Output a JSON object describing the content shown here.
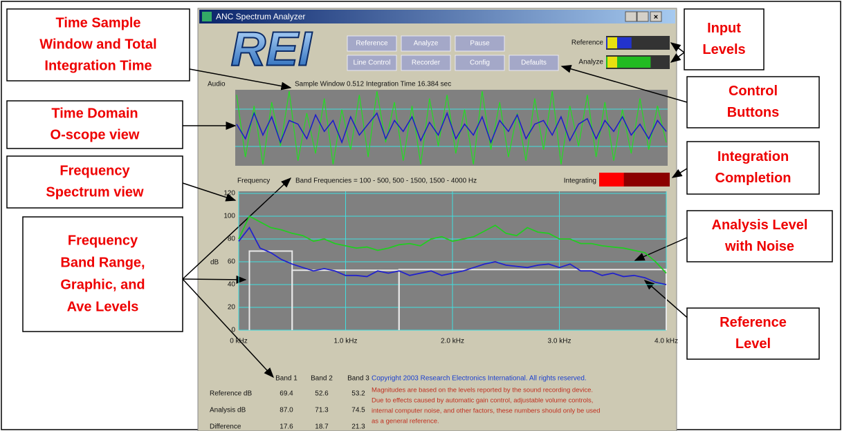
{
  "window": {
    "title": "ANC Spectrum Analyzer",
    "logo": "REI",
    "buttons": [
      "Reference",
      "Analyze",
      "Pause",
      "Line Control",
      "Recorder",
      "Config",
      "Defaults"
    ],
    "meters": [
      {
        "label": "Reference",
        "level": 40
      },
      {
        "label": "Analyze",
        "level": 70
      }
    ],
    "audio_label": "Audio",
    "sample_info": "Sample Window 0.512   Integration Time 16.384 sec",
    "frequency_label": "Frequency",
    "band_info": "Band Frequencies = 100 - 500, 500 - 1500, 1500 - 4000 Hz",
    "integrating_label": "Integrating",
    "integrating_progress": 35
  },
  "scope": {
    "series": [
      {
        "color": "#22dd22",
        "values": [
          0.9,
          -0.8,
          0.6,
          -1,
          0.7,
          -0.5,
          1,
          -0.9,
          0.4,
          -0.7,
          0.8,
          -1,
          0.5,
          -0.6,
          0.9,
          -0.8,
          1,
          -0.4,
          0.7,
          -0.9,
          0.6,
          -1,
          0.8,
          -0.5,
          0.9,
          -0.7,
          0.5,
          -1,
          1,
          -0.6,
          0.7,
          -0.8,
          0.4,
          -0.9,
          0.8,
          -0.6,
          1,
          -1,
          0.6,
          -0.5,
          0.9,
          -0.8,
          0.7,
          -0.9,
          0.5,
          -0.7,
          0.8,
          -0.6,
          0.6,
          -0.4
        ]
      },
      {
        "color": "#1a1acc",
        "values": [
          0.1,
          -0.3,
          0.4,
          -0.2,
          0.3,
          -0.4,
          0.2,
          0.1,
          -0.3,
          0.35,
          -0.1,
          0.2,
          -0.4,
          0.3,
          -0.2,
          0.1,
          0.4,
          -0.3,
          0.2,
          -0.1,
          0.3,
          -0.35,
          0.15,
          -0.2,
          0.4,
          -0.3,
          0.1,
          -0.2,
          0.3,
          -0.4,
          0.2,
          -0.1,
          0.35,
          -0.3,
          0.1,
          0.2,
          -0.2,
          0.3,
          -0.35,
          0.1,
          0.25,
          -0.3,
          0.2,
          -0.1,
          0.3,
          -0.2,
          0.1,
          -0.3,
          0.2,
          -0.1
        ]
      }
    ]
  },
  "chart_data": {
    "type": "line",
    "ylabel": "dB",
    "x": [
      0,
      0.1,
      0.2,
      0.3,
      0.4,
      0.5,
      0.6,
      0.7,
      0.8,
      0.9,
      1.0,
      1.1,
      1.2,
      1.3,
      1.4,
      1.5,
      1.6,
      1.7,
      1.8,
      1.9,
      2.0,
      2.1,
      2.2,
      2.3,
      2.4,
      2.5,
      2.6,
      2.7,
      2.8,
      2.9,
      3.0,
      3.1,
      3.2,
      3.3,
      3.4,
      3.5,
      3.6,
      3.7,
      3.8,
      3.9,
      4.0
    ],
    "series": [
      {
        "color": "#22cc22",
        "values": [
          80,
          100,
          95,
          90,
          88,
          85,
          83,
          78,
          80,
          76,
          74,
          72,
          73,
          70,
          72,
          75,
          76,
          74,
          80,
          82,
          78,
          80,
          82,
          87,
          92,
          85,
          83,
          90,
          86,
          85,
          80,
          80,
          76,
          76,
          74,
          73,
          72,
          70,
          68,
          60,
          50
        ]
      },
      {
        "color": "#2222cc",
        "values": [
          78,
          90,
          72,
          68,
          62,
          58,
          55,
          52,
          54,
          52,
          48,
          48,
          47,
          52,
          50,
          52,
          48,
          50,
          52,
          48,
          50,
          52,
          55,
          58,
          60,
          57,
          56,
          55,
          57,
          58,
          55,
          58,
          52,
          52,
          48,
          50,
          47,
          48,
          46,
          42,
          40
        ]
      }
    ],
    "band_ranges": [
      [
        0.1,
        0.5
      ],
      [
        0.5,
        1.5
      ],
      [
        1.5,
        4.0
      ]
    ],
    "xlim": [
      0,
      4.0
    ],
    "xticks": [
      {
        "value": 0,
        "label": "0 kHz"
      },
      {
        "value": 1,
        "label": "1.0 kHz"
      },
      {
        "value": 2,
        "label": "2.0 kHz"
      },
      {
        "value": 3,
        "label": "3.0 kHz"
      },
      {
        "value": 4,
        "label": "4.0 kHz"
      }
    ],
    "ylim": [
      0,
      120
    ],
    "yticks": [
      0,
      20,
      40,
      60,
      80,
      100,
      120
    ],
    "grid": true
  },
  "table": {
    "header": [
      "Band 1",
      "Band 2",
      "Band 3"
    ],
    "rows": [
      {
        "label": "Reference dB",
        "values": [
          "69.4",
          "52.6",
          "53.2"
        ]
      },
      {
        "label": "Analysis dB",
        "values": [
          "87.0",
          "71.3",
          "74.5"
        ]
      },
      {
        "label": "Difference",
        "values": [
          "17.6",
          "18.7",
          "21.3"
        ]
      }
    ]
  },
  "copyright": "Copyright 2003  Research Electronics International.  All rights reserved.",
  "disclaimer": [
    "Magnitudes are based on the levels reported by the sound recording device.",
    "Due to effects caused by automatic gain control, adjustable volume controls,",
    "internal computer noise, and other factors, these numbers should only be used",
    "as a general reference."
  ],
  "callouts": [
    {
      "lines": [
        "Time Sample",
        "Window and Total",
        "Integration Time"
      ]
    },
    {
      "lines": [
        "Time Domain",
        "O-scope view"
      ]
    },
    {
      "lines": [
        "Frequency",
        "Spectrum view"
      ]
    },
    {
      "lines": [
        "Frequency",
        "Band Range,",
        "Graphic, and",
        "Ave Levels"
      ]
    },
    {
      "lines": [
        "Input",
        "Levels"
      ]
    },
    {
      "lines": [
        "Control",
        "Buttons"
      ]
    },
    {
      "lines": [
        "Integration",
        "Completion"
      ]
    },
    {
      "lines": [
        "Analysis Level",
        "with Noise"
      ]
    },
    {
      "lines": [
        "Reference",
        "Level"
      ]
    }
  ]
}
